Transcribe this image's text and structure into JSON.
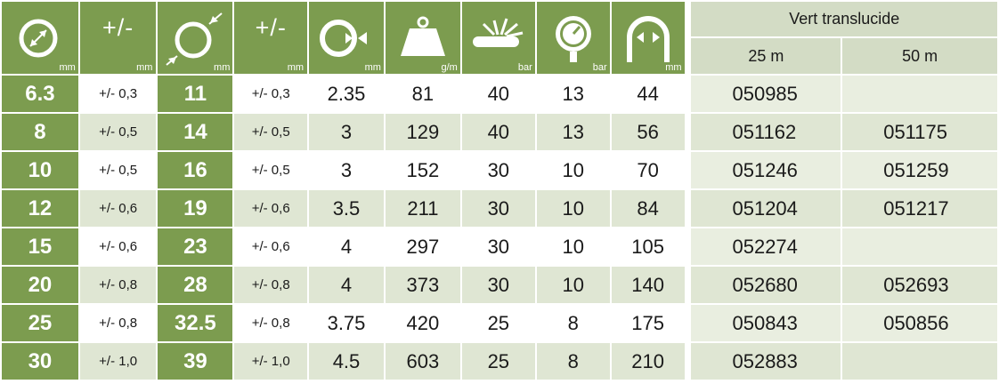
{
  "header": {
    "icons": [
      {
        "icon": "inner-diameter-icon",
        "unit": "mm"
      },
      {
        "icon": "tolerance-icon",
        "symbol": "+/-",
        "unit": "mm"
      },
      {
        "icon": "outer-diameter-icon",
        "unit": "mm"
      },
      {
        "icon": "tolerance-icon",
        "symbol": "+/-",
        "unit": "mm"
      },
      {
        "icon": "wall-thickness-icon",
        "unit": "mm"
      },
      {
        "icon": "weight-icon",
        "unit": "g/m"
      },
      {
        "icon": "burst-pressure-icon",
        "unit": "bar"
      },
      {
        "icon": "pressure-gauge-icon",
        "unit": "bar"
      },
      {
        "icon": "bend-radius-icon",
        "unit": "mm"
      }
    ],
    "color_title": "Vert translucide",
    "lengths": [
      "25 m",
      "50 m"
    ]
  },
  "rows": [
    {
      "id": "6.3",
      "id_tol": "+/- 0,3",
      "od": "11",
      "od_tol": "+/- 0,3",
      "wall": "2.35",
      "weight": "81",
      "burst": "40",
      "work": "13",
      "bend": "44",
      "ref25": "050985",
      "ref50": ""
    },
    {
      "id": "8",
      "id_tol": "+/- 0,5",
      "od": "14",
      "od_tol": "+/- 0,5",
      "wall": "3",
      "weight": "129",
      "burst": "40",
      "work": "13",
      "bend": "56",
      "ref25": "051162",
      "ref50": "051175"
    },
    {
      "id": "10",
      "id_tol": "+/- 0,5",
      "od": "16",
      "od_tol": "+/- 0,5",
      "wall": "3",
      "weight": "152",
      "burst": "30",
      "work": "10",
      "bend": "70",
      "ref25": "051246",
      "ref50": "051259"
    },
    {
      "id": "12",
      "id_tol": "+/- 0,6",
      "od": "19",
      "od_tol": "+/- 0,6",
      "wall": "3.5",
      "weight": "211",
      "burst": "30",
      "work": "10",
      "bend": "84",
      "ref25": "051204",
      "ref50": "051217"
    },
    {
      "id": "15",
      "id_tol": "+/- 0,6",
      "od": "23",
      "od_tol": "+/- 0,6",
      "wall": "4",
      "weight": "297",
      "burst": "30",
      "work": "10",
      "bend": "105",
      "ref25": "052274",
      "ref50": ""
    },
    {
      "id": "20",
      "id_tol": "+/- 0,8",
      "od": "28",
      "od_tol": "+/- 0,8",
      "wall": "4",
      "weight": "373",
      "burst": "30",
      "work": "10",
      "bend": "140",
      "ref25": "052680",
      "ref50": "052693"
    },
    {
      "id": "25",
      "id_tol": "+/- 0,8",
      "od": "32.5",
      "od_tol": "+/- 0,8",
      "wall": "3.75",
      "weight": "420",
      "burst": "25",
      "work": "8",
      "bend": "175",
      "ref25": "050843",
      "ref50": "050856"
    },
    {
      "id": "30",
      "id_tol": "+/- 1,0",
      "od": "39",
      "od_tol": "+/- 1,0",
      "wall": "4.5",
      "weight": "603",
      "burst": "25",
      "work": "8",
      "bend": "210",
      "ref25": "052883",
      "ref50": ""
    }
  ],
  "colors": {
    "accent_green": "#7c9c4f",
    "header_light": "#d3dcc5",
    "stripe": "#dfe6d3"
  }
}
